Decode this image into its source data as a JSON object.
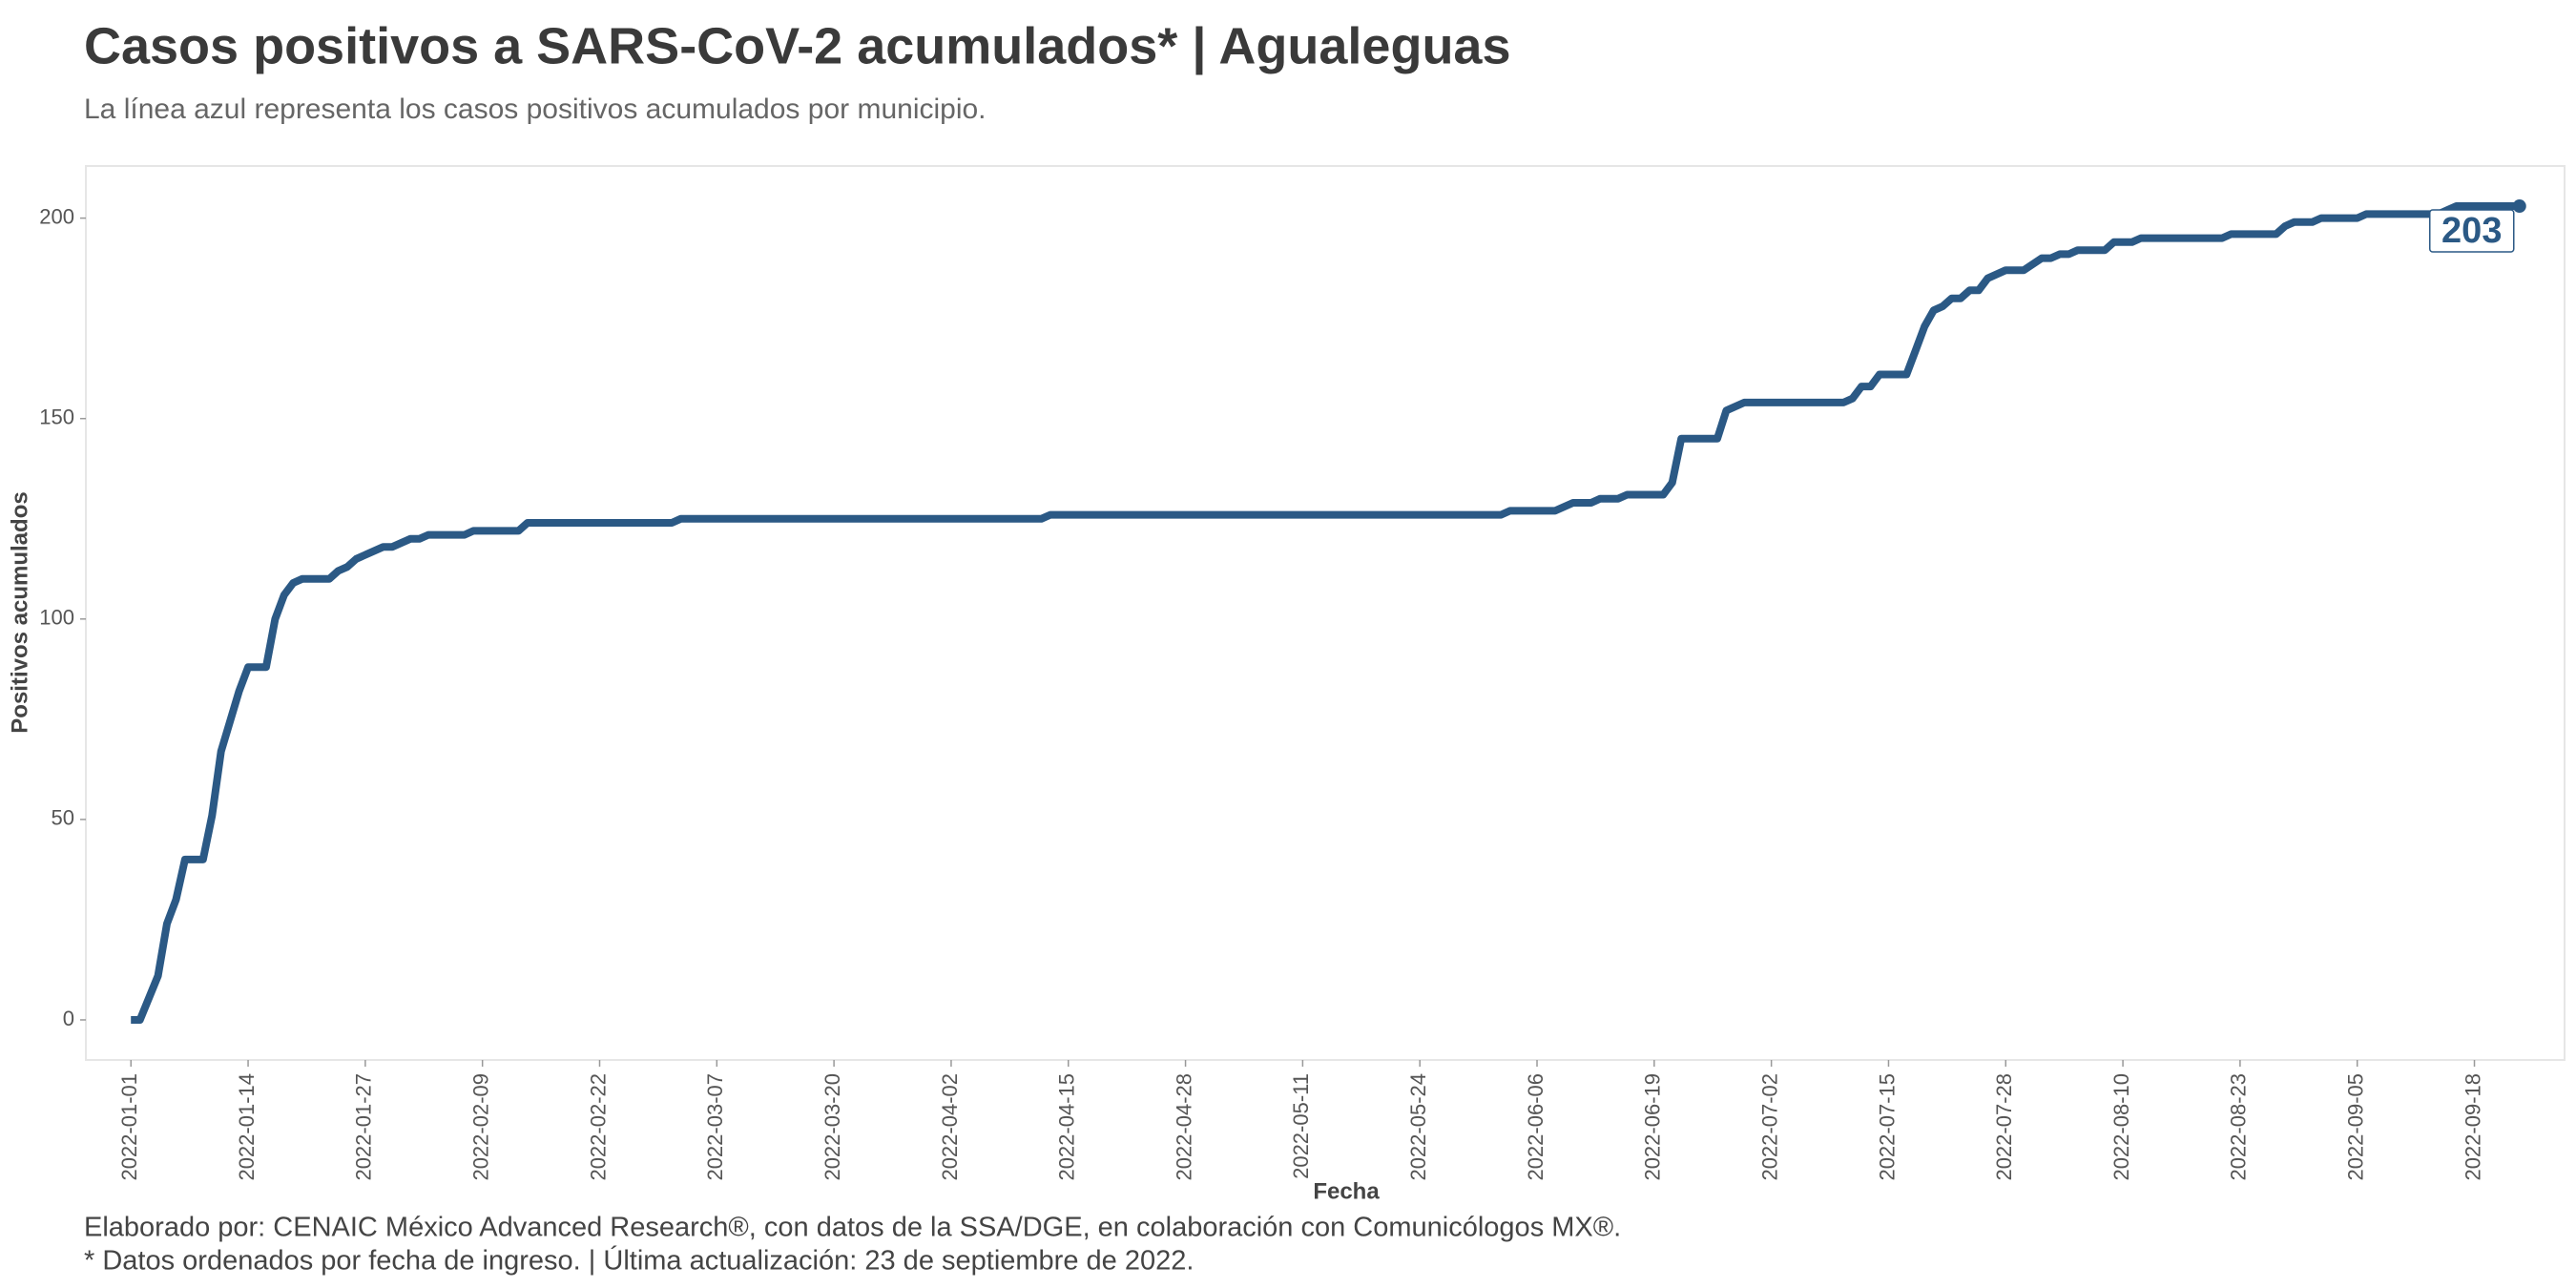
{
  "chart_data": {
    "type": "line",
    "title": "Casos positivos a SARS-CoV-2 acumulados* | Agualeguas",
    "subtitle": "La línea azul representa los casos positivos acumulados por municipio.",
    "x_label": "Fecha",
    "y_label": "Positivos acumulados",
    "caption": [
      "Elaborado por: CENAIC México Advanced Research®, con datos de la SSA/DGE, en colaboración con Comunicólogos MX®.",
      "* Datos ordenados por fecha de ingreso. | Última actualización: 23 de septiembre de 2022."
    ],
    "color": "#2b5985",
    "grid": false,
    "x": [
      "2022-01-01",
      "2022-01-02",
      "2022-01-04",
      "2022-01-05",
      "2022-01-06",
      "2022-01-07",
      "2022-01-09",
      "2022-01-10",
      "2022-01-11",
      "2022-01-13",
      "2022-01-14",
      "2022-01-16",
      "2022-01-17",
      "2022-01-18",
      "2022-01-19",
      "2022-01-20",
      "2022-01-23",
      "2022-01-24",
      "2022-01-25",
      "2022-01-26",
      "2022-01-29",
      "2022-01-30",
      "2022-02-01",
      "2022-02-02",
      "2022-02-03",
      "2022-02-07",
      "2022-02-08",
      "2022-02-13",
      "2022-02-14",
      "2022-03-02",
      "2022-03-03",
      "2022-04-12",
      "2022-04-13",
      "2022-06-02",
      "2022-06-03",
      "2022-06-08",
      "2022-06-10",
      "2022-06-12",
      "2022-06-13",
      "2022-06-15",
      "2022-06-16",
      "2022-06-20",
      "2022-06-21",
      "2022-06-22",
      "2022-06-26",
      "2022-06-27",
      "2022-06-29",
      "2022-07-10",
      "2022-07-11",
      "2022-07-12",
      "2022-07-13",
      "2022-07-14",
      "2022-07-17",
      "2022-07-18",
      "2022-07-19",
      "2022-07-20",
      "2022-07-21",
      "2022-07-22",
      "2022-07-23",
      "2022-07-24",
      "2022-07-25",
      "2022-07-26",
      "2022-07-28",
      "2022-07-30",
      "2022-08-01",
      "2022-08-02",
      "2022-08-03",
      "2022-08-04",
      "2022-08-05",
      "2022-08-08",
      "2022-08-09",
      "2022-08-11",
      "2022-08-12",
      "2022-08-21",
      "2022-08-22",
      "2022-08-27",
      "2022-08-28",
      "2022-08-29",
      "2022-08-31",
      "2022-09-01",
      "2022-09-05",
      "2022-09-06",
      "2022-09-14",
      "2022-09-15",
      "2022-09-16",
      "2022-09-23"
    ],
    "values": [
      0,
      0,
      11,
      24,
      30,
      40,
      40,
      51,
      67,
      82,
      88,
      88,
      100,
      106,
      109,
      110,
      110,
      112,
      113,
      115,
      118,
      118,
      120,
      120,
      121,
      121,
      122,
      122,
      124,
      124,
      125,
      125,
      126,
      126,
      127,
      127,
      129,
      129,
      130,
      130,
      131,
      131,
      134,
      145,
      145,
      152,
      154,
      154,
      155,
      158,
      158,
      161,
      161,
      167,
      173,
      177,
      178,
      180,
      180,
      182,
      182,
      185,
      187,
      187,
      190,
      190,
      191,
      191,
      192,
      192,
      194,
      194,
      195,
      195,
      196,
      196,
      198,
      199,
      199,
      200,
      200,
      201,
      201,
      202,
      203,
      203
    ],
    "xlim": [
      "2021-12-27",
      "2022-09-28"
    ],
    "xticks": [
      "2022-01-01",
      "2022-01-14",
      "2022-01-27",
      "2022-02-09",
      "2022-02-22",
      "2022-03-07",
      "2022-03-20",
      "2022-04-02",
      "2022-04-15",
      "2022-04-28",
      "2022-05-11",
      "2022-05-24",
      "2022-06-06",
      "2022-06-19",
      "2022-07-02",
      "2022-07-15",
      "2022-07-28",
      "2022-08-10",
      "2022-08-23",
      "2022-09-05",
      "2022-09-18"
    ],
    "ylim": [
      -10,
      213
    ],
    "yticks": [
      0,
      50,
      100,
      150,
      200
    ]
  }
}
